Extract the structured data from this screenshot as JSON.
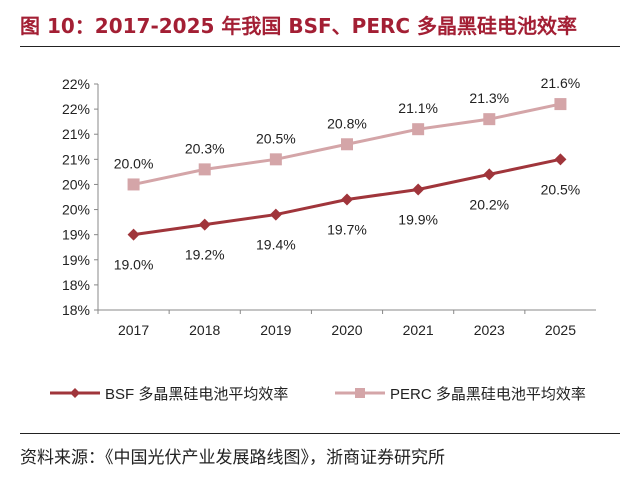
{
  "title": "图 10：2017-2025 年我国 BSF、PERC 多晶黑硅电池效率",
  "source": "资料来源：《中国光伏产业发展路线图》，浙商证券研究所",
  "chart_data": {
    "type": "line",
    "categories": [
      "2017",
      "2018",
      "2019",
      "2020",
      "2021",
      "2023",
      "2025"
    ],
    "ylim": [
      17.5,
      22.0
    ],
    "yticks": [
      17.5,
      18.0,
      18.5,
      19.0,
      19.5,
      20.0,
      20.5,
      21.0,
      21.5,
      22.0
    ],
    "ytick_labels": [
      "18%",
      "18%",
      "19%",
      "19%",
      "20%",
      "20%",
      "21%",
      "21%",
      "22%",
      "22%"
    ],
    "grid": false,
    "legend": "bottom",
    "series": [
      {
        "name": "BSF 多晶黑硅电池平均效率",
        "values": [
          19.0,
          19.2,
          19.4,
          19.7,
          19.9,
          20.2,
          20.5
        ],
        "labels": [
          "19.0%",
          "19.2%",
          "19.4%",
          "19.7%",
          "19.9%",
          "20.2%",
          "20.5%"
        ],
        "color": "#a0353b",
        "marker": "diamond"
      },
      {
        "name": "PERC 多晶黑硅电池平均效率",
        "values": [
          20.0,
          20.3,
          20.5,
          20.8,
          21.1,
          21.3,
          21.6
        ],
        "labels": [
          "20.0%",
          "20.3%",
          "20.5%",
          "20.8%",
          "21.1%",
          "21.3%",
          "21.6%"
        ],
        "color": "#d4a5a8",
        "marker": "square"
      }
    ]
  }
}
